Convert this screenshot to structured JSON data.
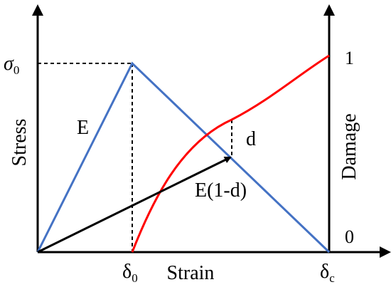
{
  "axes": {
    "x_label": "Strain",
    "y_left_label": "Stress",
    "y_right_label": "Damage"
  },
  "ticks": {
    "sigma0": {
      "base": "σ",
      "sub": "0"
    },
    "delta0": {
      "base": "δ",
      "sub": "0"
    },
    "deltac": {
      "base": "δ",
      "sub": "c"
    },
    "damage_one": "1",
    "damage_zero": "0"
  },
  "annotations": {
    "modulus": "E",
    "degraded_modulus": "E(1-d)",
    "damage_gap": "d"
  },
  "colors": {
    "stress_curve": "#4472C4",
    "damage_curve": "#FF0000",
    "axes": "#000000"
  }
}
